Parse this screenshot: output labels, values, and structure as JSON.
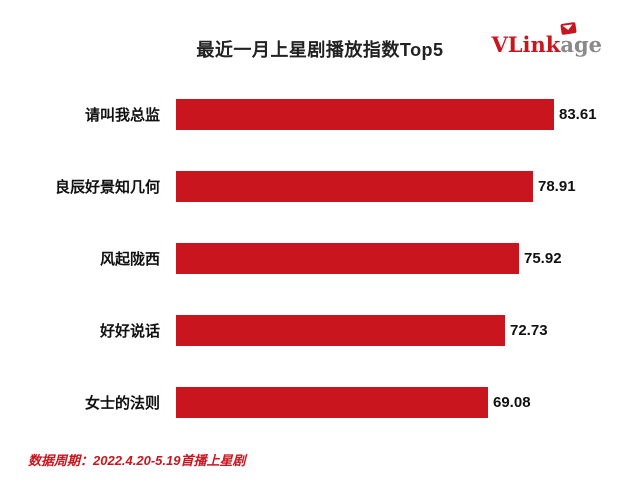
{
  "title": "最近一月上星剧播放指数Top5",
  "logo": {
    "part1": "VLink",
    "part2": "age",
    "icon": "mail-icon",
    "brand_red": "#c9161e",
    "brand_gray": "#8a8a8a"
  },
  "footer": "数据周期：2022.4.20-5.19首播上星剧",
  "chart_data": {
    "type": "bar",
    "orientation": "horizontal",
    "title": "最近一月上星剧播放指数Top5",
    "categories": [
      "请叫我总监",
      "良辰好景知几何",
      "风起陇西",
      "好好说话",
      "女士的法则"
    ],
    "values": [
      83.61,
      78.91,
      75.92,
      72.73,
      69.08
    ],
    "bar_color": "#c9161e",
    "xlim": [
      0,
      88
    ],
    "grid": false,
    "legend": false,
    "value_labels": "end-of-bar"
  }
}
